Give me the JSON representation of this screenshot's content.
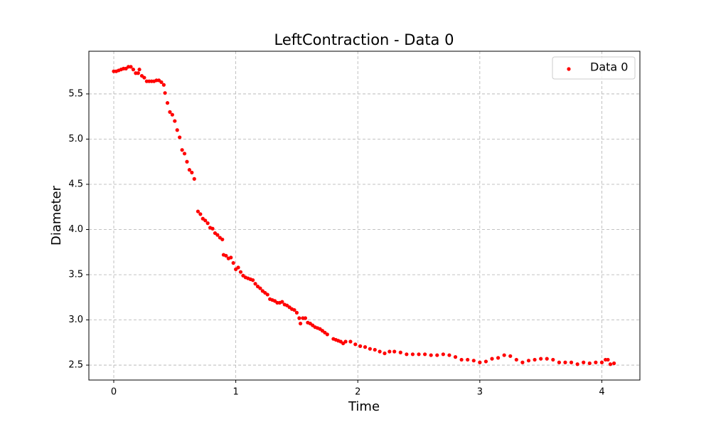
{
  "chart_data": {
    "type": "scatter",
    "title": "LeftContraction - Data 0",
    "x_label": "Time",
    "y_label": "Diameter",
    "x": [
      0.0,
      0.02,
      0.04,
      0.06,
      0.08,
      0.1,
      0.12,
      0.14,
      0.16,
      0.18,
      0.2,
      0.21,
      0.23,
      0.25,
      0.27,
      0.29,
      0.31,
      0.33,
      0.35,
      0.37,
      0.39,
      0.41,
      0.42,
      0.44,
      0.46,
      0.48,
      0.5,
      0.52,
      0.54,
      0.56,
      0.58,
      0.6,
      0.62,
      0.64,
      0.66,
      0.69,
      0.71,
      0.73,
      0.75,
      0.77,
      0.79,
      0.81,
      0.83,
      0.85,
      0.87,
      0.89,
      0.9,
      0.92,
      0.94,
      0.96,
      0.98,
      1.0,
      1.02,
      1.04,
      1.06,
      1.08,
      1.1,
      1.12,
      1.14,
      1.16,
      1.18,
      1.2,
      1.22,
      1.24,
      1.26,
      1.28,
      1.3,
      1.32,
      1.34,
      1.36,
      1.38,
      1.4,
      1.42,
      1.44,
      1.46,
      1.48,
      1.5,
      1.52,
      1.53,
      1.55,
      1.57,
      1.59,
      1.61,
      1.63,
      1.65,
      1.67,
      1.69,
      1.71,
      1.73,
      1.75,
      1.8,
      1.82,
      1.84,
      1.86,
      1.88,
      1.9,
      1.94,
      1.98,
      2.02,
      2.06,
      2.1,
      2.14,
      2.18,
      2.22,
      2.26,
      2.3,
      2.35,
      2.4,
      2.45,
      2.5,
      2.55,
      2.6,
      2.65,
      2.7,
      2.75,
      2.8,
      2.85,
      2.9,
      2.95,
      3.0,
      3.05,
      3.1,
      3.15,
      3.2,
      3.25,
      3.3,
      3.35,
      3.4,
      3.45,
      3.5,
      3.55,
      3.6,
      3.65,
      3.7,
      3.75,
      3.8,
      3.85,
      3.9,
      3.95,
      4.0,
      4.03,
      4.05,
      4.07,
      4.1
    ],
    "series": [
      {
        "name": "Data 0",
        "color": "#ff0000",
        "values": [
          5.75,
          5.75,
          5.76,
          5.77,
          5.78,
          5.78,
          5.8,
          5.8,
          5.77,
          5.73,
          5.73,
          5.77,
          5.7,
          5.68,
          5.64,
          5.64,
          5.64,
          5.64,
          5.65,
          5.65,
          5.63,
          5.6,
          5.51,
          5.4,
          5.3,
          5.27,
          5.2,
          5.1,
          5.02,
          4.88,
          4.84,
          4.75,
          4.66,
          4.63,
          4.56,
          4.2,
          4.17,
          4.12,
          4.1,
          4.07,
          4.02,
          4.01,
          3.96,
          3.94,
          3.91,
          3.89,
          3.72,
          3.71,
          3.68,
          3.69,
          3.63,
          3.56,
          3.58,
          3.53,
          3.49,
          3.47,
          3.46,
          3.45,
          3.44,
          3.4,
          3.37,
          3.35,
          3.32,
          3.3,
          3.28,
          3.23,
          3.22,
          3.21,
          3.19,
          3.19,
          3.2,
          3.17,
          3.16,
          3.14,
          3.12,
          3.11,
          3.08,
          3.02,
          2.96,
          3.02,
          3.02,
          2.97,
          2.96,
          2.94,
          2.92,
          2.91,
          2.9,
          2.88,
          2.86,
          2.84,
          2.79,
          2.78,
          2.77,
          2.76,
          2.74,
          2.76,
          2.76,
          2.73,
          2.71,
          2.7,
          2.68,
          2.67,
          2.65,
          2.63,
          2.65,
          2.65,
          2.64,
          2.62,
          2.62,
          2.62,
          2.62,
          2.61,
          2.61,
          2.62,
          2.61,
          2.59,
          2.56,
          2.56,
          2.55,
          2.53,
          2.54,
          2.57,
          2.58,
          2.61,
          2.6,
          2.56,
          2.53,
          2.55,
          2.56,
          2.57,
          2.57,
          2.56,
          2.53,
          2.53,
          2.53,
          2.51,
          2.53,
          2.52,
          2.53,
          2.53,
          2.56,
          2.56,
          2.51,
          2.52
        ]
      }
    ],
    "xlim": [
      -0.204,
      4.312
    ],
    "xticks": [
      0,
      1,
      2,
      3,
      4
    ],
    "ylim": [
      2.335,
      5.972
    ],
    "yticks": [
      2.5,
      {
        "value": 3,
        "label": "3.0"
      },
      3.5,
      {
        "value": 4,
        "label": "4.0"
      },
      4.5,
      {
        "value": 5,
        "label": "5.0"
      },
      5.5
    ],
    "grid": true,
    "legend": "upper right"
  }
}
